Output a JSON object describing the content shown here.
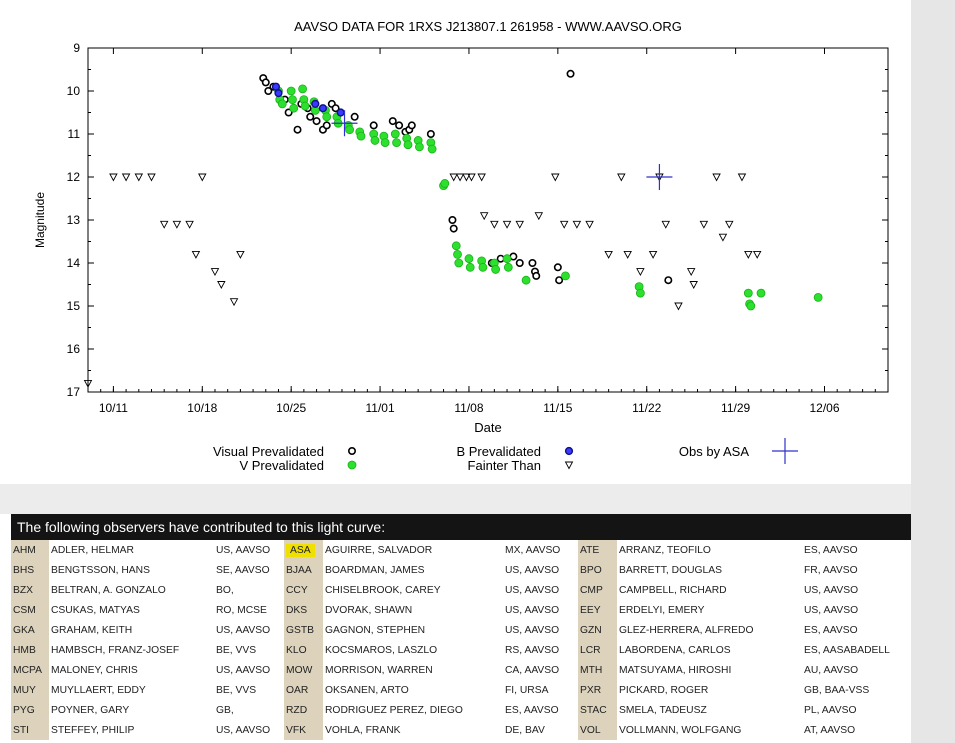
{
  "chart_data": {
    "type": "scatter",
    "title": "AAVSO DATA FOR 1RXS J213807.1 261958 - WWW.AAVSO.ORG",
    "xlabel": "Date",
    "ylabel": "Magnitude",
    "x_unit": "days (month/day)",
    "xlim": [
      "10/09",
      "12/11"
    ],
    "ylim": [
      17,
      9
    ],
    "y_inverted": true,
    "x_ticks": [
      "10/11",
      "10/18",
      "10/25",
      "11/01",
      "11/08",
      "11/15",
      "11/22",
      "11/29",
      "12/06"
    ],
    "y_ticks": [
      9,
      10,
      11,
      12,
      13,
      14,
      15,
      16,
      17
    ],
    "grid": false,
    "series": [
      {
        "name": "Visual Prevalidated",
        "color": "#000000",
        "points": [
          [
            "10/22.8",
            9.7
          ],
          [
            "10/23.0",
            9.8
          ],
          [
            "10/23.2",
            10.0
          ],
          [
            "10/23.6",
            9.9
          ],
          [
            "10/24.5",
            10.2
          ],
          [
            "10/24.8",
            10.5
          ],
          [
            "10/25.5",
            10.9
          ],
          [
            "10/25.8",
            10.3
          ],
          [
            "10/26.3",
            10.4
          ],
          [
            "10/26.5",
            10.6
          ],
          [
            "10/27.0",
            10.7
          ],
          [
            "10/27.5",
            10.9
          ],
          [
            "10/27.8",
            10.8
          ],
          [
            "10/28.2",
            10.3
          ],
          [
            "10/28.5",
            10.4
          ],
          [
            "10/30.0",
            10.6
          ],
          [
            "10/31.5",
            10.8
          ],
          [
            "11/02.0",
            10.7
          ],
          [
            "11/02.5",
            10.8
          ],
          [
            "11/03.0",
            10.95
          ],
          [
            "11/03.3",
            10.9
          ],
          [
            "11/03.5",
            10.8
          ],
          [
            "11/05.0",
            11.0
          ],
          [
            "11/06.7",
            13.0
          ],
          [
            "11/06.8",
            13.2
          ],
          [
            "11/09.8",
            14.0
          ],
          [
            "11/10.5",
            13.9
          ],
          [
            "11/11.5",
            13.85
          ],
          [
            "11/12.0",
            14.0
          ],
          [
            "11/13.0",
            14.0
          ],
          [
            "11/13.2",
            14.2
          ],
          [
            "11/13.3",
            14.3
          ],
          [
            "11/15.0",
            14.1
          ],
          [
            "11/15.1",
            14.4
          ],
          [
            "11/16.0",
            9.6
          ],
          [
            "11/23.7",
            14.4
          ]
        ]
      },
      {
        "name": "B Prevalidated",
        "color": "#1a1aff",
        "points": [
          [
            "10/23.8",
            9.9
          ],
          [
            "10/24.0",
            10.05
          ],
          [
            "10/26.9",
            10.3
          ],
          [
            "10/27.5",
            10.4
          ],
          [
            "10/28.9",
            10.5
          ]
        ]
      },
      {
        "name": "V Prevalidated",
        "color": "#22e022",
        "points": [
          [
            "10/24.0",
            10.0
          ],
          [
            "10/24.1",
            10.2
          ],
          [
            "10/24.3",
            10.3
          ],
          [
            "10/25.0",
            10.0
          ],
          [
            "10/25.1",
            10.2
          ],
          [
            "10/25.2",
            10.4
          ],
          [
            "10/25.9",
            9.95
          ],
          [
            "10/26.0",
            10.2
          ],
          [
            "10/26.1",
            10.35
          ],
          [
            "10/26.8",
            10.25
          ],
          [
            "10/26.9",
            10.45
          ],
          [
            "10/27.7",
            10.45
          ],
          [
            "10/27.8",
            10.6
          ],
          [
            "10/28.6",
            10.6
          ],
          [
            "10/28.7",
            10.75
          ],
          [
            "10/29.5",
            10.8
          ],
          [
            "10/29.6",
            10.9
          ],
          [
            "10/30.4",
            10.95
          ],
          [
            "10/30.5",
            11.05
          ],
          [
            "10/31.5",
            11.0
          ],
          [
            "10/31.6",
            11.15
          ],
          [
            "11/01.3",
            11.05
          ],
          [
            "11/01.4",
            11.2
          ],
          [
            "11/02.2",
            11.0
          ],
          [
            "11/02.3",
            11.2
          ],
          [
            "11/03.1",
            11.1
          ],
          [
            "11/03.2",
            11.25
          ],
          [
            "11/04.0",
            11.15
          ],
          [
            "11/04.1",
            11.3
          ],
          [
            "11/05.0",
            11.2
          ],
          [
            "11/05.1",
            11.35
          ],
          [
            "11/06.0",
            12.2
          ],
          [
            "11/06.1",
            12.15
          ],
          [
            "11/07.0",
            13.6
          ],
          [
            "11/07.1",
            13.8
          ],
          [
            "11/07.2",
            14.0
          ],
          [
            "11/08.0",
            13.9
          ],
          [
            "11/08.1",
            14.1
          ],
          [
            "11/09.0",
            13.95
          ],
          [
            "11/09.1",
            14.1
          ],
          [
            "11/10.0",
            14.0
          ],
          [
            "11/10.1",
            14.15
          ],
          [
            "11/11.0",
            13.9
          ],
          [
            "11/11.1",
            14.1
          ],
          [
            "11/12.5",
            14.4
          ],
          [
            "11/15.6",
            14.3
          ],
          [
            "11/21.4",
            14.55
          ],
          [
            "11/21.5",
            14.7
          ],
          [
            "11/30.0",
            14.7
          ],
          [
            "11/30.1",
            14.95
          ],
          [
            "11/30.2",
            15.0
          ],
          [
            "12/01.0",
            14.7
          ],
          [
            "12/05.5",
            14.8
          ]
        ]
      },
      {
        "name": "Fainter Than",
        "color": "#000000",
        "points": [
          [
            "10/09.0",
            16.8
          ],
          [
            "10/11.0",
            12.0
          ],
          [
            "10/12.0",
            12.0
          ],
          [
            "10/13.0",
            12.0
          ],
          [
            "10/14.0",
            12.0
          ],
          [
            "10/15.0",
            13.1
          ],
          [
            "10/16.0",
            13.1
          ],
          [
            "10/17.0",
            13.1
          ],
          [
            "10/17.5",
            13.8
          ],
          [
            "10/18.0",
            12.0
          ],
          [
            "10/19.0",
            14.2
          ],
          [
            "10/19.5",
            14.5
          ],
          [
            "10/20.5",
            14.9
          ],
          [
            "10/21.0",
            13.8
          ],
          [
            "11/06.8",
            12.0
          ],
          [
            "11/07.3",
            12.0
          ],
          [
            "11/07.8",
            12.0
          ],
          [
            "11/08.2",
            12.0
          ],
          [
            "11/09.0",
            12.0
          ],
          [
            "11/09.2",
            12.9
          ],
          [
            "11/10.0",
            13.1
          ],
          [
            "11/11.0",
            13.1
          ],
          [
            "11/12.0",
            13.1
          ],
          [
            "11/13.5",
            12.9
          ],
          [
            "11/14.8",
            12.0
          ],
          [
            "11/15.5",
            13.1
          ],
          [
            "11/16.5",
            13.1
          ],
          [
            "11/17.5",
            13.1
          ],
          [
            "11/19.0",
            13.8
          ],
          [
            "11/20.0",
            12.0
          ],
          [
            "11/20.5",
            13.8
          ],
          [
            "11/21.5",
            14.2
          ],
          [
            "11/22.5",
            13.8
          ],
          [
            "11/23.0",
            12.0
          ],
          [
            "11/23.5",
            13.1
          ],
          [
            "11/24.5",
            15.0
          ],
          [
            "11/25.5",
            14.2
          ],
          [
            "11/25.7",
            14.5
          ],
          [
            "11/26.5",
            13.1
          ],
          [
            "11/27.5",
            12.0
          ],
          [
            "11/28.0",
            13.4
          ],
          [
            "11/28.5",
            13.1
          ],
          [
            "11/29.5",
            12.0
          ],
          [
            "11/30.0",
            13.8
          ],
          [
            "11/30.7",
            13.8
          ]
        ]
      },
      {
        "name": "Obs by ASA",
        "color": "#2020c0",
        "points": [
          [
            "10/29.2",
            10.75
          ],
          [
            "11/23.0",
            12.0
          ]
        ]
      }
    ]
  },
  "observers": {
    "title": "The following observers have contributed to this light curve:",
    "highlight_code": "ASA",
    "rows": [
      [
        [
          "AHM",
          "ADLER, HELMAR",
          "US, AAVSO"
        ],
        [
          "ASA",
          "AGUIRRE, SALVADOR",
          "MX, AAVSO"
        ],
        [
          "ATE",
          "ARRANZ, TEOFILO",
          "ES, AAVSO"
        ]
      ],
      [
        [
          "BHS",
          "BENGTSSON, HANS",
          "SE, AAVSO"
        ],
        [
          "BJAA",
          "BOARDMAN, JAMES",
          "US, AAVSO"
        ],
        [
          "BPO",
          "BARRETT, DOUGLAS",
          "FR, AAVSO"
        ]
      ],
      [
        [
          "BZX",
          "BELTRAN, A. GONZALO",
          "BO,"
        ],
        [
          "CCY",
          "CHISELBROOK, CAREY",
          "US, AAVSO"
        ],
        [
          "CMP",
          "CAMPBELL, RICHARD",
          "US, AAVSO"
        ]
      ],
      [
        [
          "CSM",
          "CSUKAS, MATYAS",
          "RO, MCSE"
        ],
        [
          "DKS",
          "DVORAK, SHAWN",
          "US, AAVSO"
        ],
        [
          "EEY",
          "ERDELYI, EMERY",
          "US, AAVSO"
        ]
      ],
      [
        [
          "GKA",
          "GRAHAM, KEITH",
          "US, AAVSO"
        ],
        [
          "GSTB",
          "GAGNON, STEPHEN",
          "US, AAVSO"
        ],
        [
          "GZN",
          "GLEZ-HERRERA, ALFREDO",
          "ES, AAVSO"
        ]
      ],
      [
        [
          "HMB",
          "HAMBSCH, FRANZ-JOSEF",
          "BE, VVS"
        ],
        [
          "KLO",
          "KOCSMAROS, LASZLO",
          "RS, AAVSO"
        ],
        [
          "LCR",
          "LABORDENA, CARLOS",
          "ES, AASABADELL"
        ]
      ],
      [
        [
          "MCPA",
          "MALONEY, CHRIS",
          "US, AAVSO"
        ],
        [
          "MOW",
          "MORRISON, WARREN",
          "CA, AAVSO"
        ],
        [
          "MTH",
          "MATSUYAMA, HIROSHI",
          "AU, AAVSO"
        ]
      ],
      [
        [
          "MUY",
          "MUYLLAERT, EDDY",
          "BE, VVS"
        ],
        [
          "OAR",
          "OKSANEN, ARTO",
          "FI, URSA"
        ],
        [
          "PXR",
          "PICKARD, ROGER",
          "GB, BAA-VSS"
        ]
      ],
      [
        [
          "PYG",
          "POYNER, GARY",
          "GB,"
        ],
        [
          "RZD",
          "RODRIGUEZ PEREZ, DIEGO",
          "ES, AAVSO"
        ],
        [
          "STAC",
          "SMELA, TADEUSZ",
          "PL, AAVSO"
        ]
      ],
      [
        [
          "STI",
          "STEFFEY, PHILIP",
          "US, AAVSO"
        ],
        [
          "VFK",
          "VOHLA, FRANK",
          "DE, BAV"
        ],
        [
          "VOL",
          "VOLLMANN, WOLFGANG",
          "AT, AAVSO"
        ]
      ]
    ]
  }
}
